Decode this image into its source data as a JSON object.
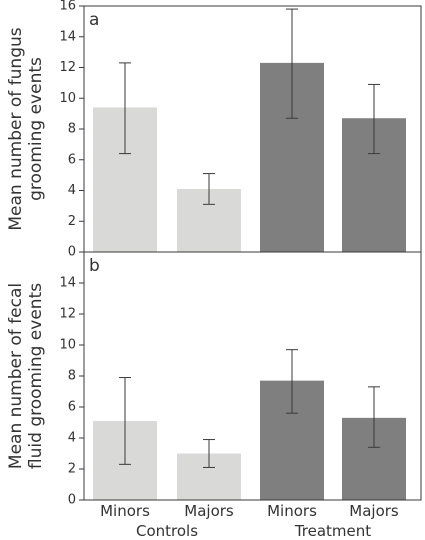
{
  "chart_data": [
    {
      "type": "bar",
      "panel_label": "a",
      "ylabel_lines": [
        "Mean number of fungus",
        "grooming events"
      ],
      "ylim": [
        0,
        16
      ],
      "yticks": [
        0,
        2,
        4,
        6,
        8,
        10,
        12,
        14,
        16
      ],
      "categories": [
        "Minors",
        "Majors",
        "Minors",
        "Majors"
      ],
      "groups": [
        "Controls",
        "Controls",
        "Treatment",
        "Treatment"
      ],
      "values": [
        9.4,
        4.1,
        12.3,
        8.7
      ],
      "error_low": [
        6.4,
        3.1,
        8.7,
        6.4
      ],
      "error_high": [
        12.3,
        5.1,
        15.8,
        10.9
      ],
      "bar_colors": [
        "#d9d9d7",
        "#d9d9d7",
        "#7f7f7f",
        "#7f7f7f"
      ]
    },
    {
      "type": "bar",
      "panel_label": "b",
      "ylabel_lines": [
        "Mean number of fecal",
        "fluid grooming events"
      ],
      "ylim": [
        0,
        16
      ],
      "yticks": [
        0,
        2,
        4,
        6,
        8,
        10,
        12,
        14
      ],
      "categories": [
        "Minors",
        "Majors",
        "Minors",
        "Majors"
      ],
      "groups": [
        "Controls",
        "Controls",
        "Treatment",
        "Treatment"
      ],
      "values": [
        5.1,
        3.0,
        7.7,
        5.3
      ],
      "error_low": [
        2.3,
        2.1,
        5.6,
        3.4
      ],
      "error_high": [
        7.9,
        3.9,
        9.7,
        7.3
      ],
      "bar_colors": [
        "#d9d9d7",
        "#d9d9d7",
        "#7f7f7f",
        "#7f7f7f"
      ]
    }
  ],
  "x_groups": [
    "Controls",
    "Treatment"
  ]
}
